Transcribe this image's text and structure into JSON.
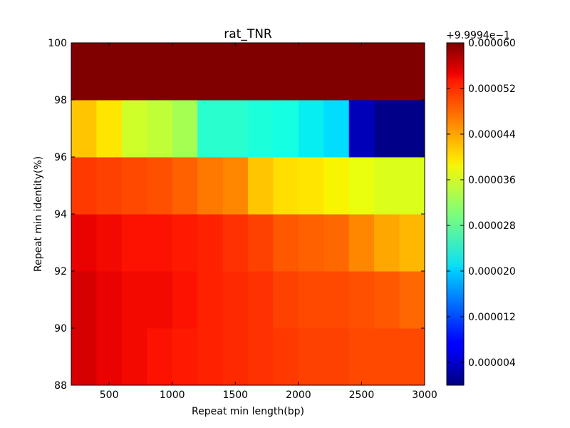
{
  "chart_data": {
    "type": "heatmap",
    "title": "rat_TNR",
    "xlabel": "Repeat min length(bp)",
    "ylabel": "Repeat min identity(%)",
    "x_range": [
      200,
      3000
    ],
    "y_range": [
      88,
      100
    ],
    "x_ticks": [
      500,
      1000,
      1500,
      2000,
      2500,
      3000
    ],
    "y_ticks": [
      88,
      90,
      92,
      94,
      96,
      98,
      100
    ],
    "x_tick_labels": [
      "500",
      "1000",
      "1500",
      "2000",
      "2500",
      "3000"
    ],
    "y_tick_labels": [
      "88",
      "90",
      "92",
      "94",
      "96",
      "98",
      "100"
    ],
    "x_cell_edges": [
      200,
      400,
      600,
      800,
      1000,
      1200,
      1400,
      1600,
      1800,
      2000,
      2200,
      2400,
      2600,
      2800,
      3000
    ],
    "y_cell_edges": [
      88,
      90,
      92,
      94,
      96,
      98,
      100
    ],
    "colorbar": {
      "colormap": "jet",
      "offset_label": "+9.9994e−1",
      "vmin": 0.0,
      "vmax": 6e-05,
      "ticks": [
        4e-06,
        1.2e-05,
        2e-05,
        2.8e-05,
        3.6e-05,
        4.4e-05,
        5.2e-05,
        6e-05
      ],
      "tick_labels": [
        "0.000004",
        "0.000012",
        "0.000020",
        "0.000028",
        "0.000036",
        "0.000044",
        "0.000052",
        "0.000060"
      ]
    },
    "rows": [
      {
        "identity_range": [
          88,
          90
        ],
        "values": [
          5.55e-05,
          5.45e-05,
          5.4e-05,
          5.35e-05,
          5.3e-05,
          5.25e-05,
          5.2e-05,
          5.15e-05,
          5.1e-05,
          5.05e-05,
          5.05e-05,
          5e-05,
          5e-05,
          5e-05
        ]
      },
      {
        "identity_range": [
          90,
          92
        ],
        "values": [
          5.55e-05,
          5.45e-05,
          5.4e-05,
          5.4e-05,
          5.35e-05,
          5.25e-05,
          5.2e-05,
          5.15e-05,
          5.05e-05,
          5e-05,
          5e-05,
          4.95e-05,
          4.9e-05,
          4.8e-05
        ]
      },
      {
        "identity_range": [
          92,
          94
        ],
        "values": [
          5.45e-05,
          5.4e-05,
          5.35e-05,
          5.35e-05,
          5.3e-05,
          5.25e-05,
          5.15e-05,
          5.05e-05,
          4.9e-05,
          4.85e-05,
          4.8e-05,
          4.6e-05,
          4.4e-05,
          4.3e-05
        ]
      },
      {
        "identity_range": [
          94,
          96
        ],
        "values": [
          5.1e-05,
          5.05e-05,
          5e-05,
          4.95e-05,
          4.85e-05,
          4.7e-05,
          4.6e-05,
          4.2e-05,
          4.05e-05,
          4e-05,
          3.9e-05,
          3.8e-05,
          3.7e-05,
          3.7e-05
        ]
      },
      {
        "identity_range": [
          96,
          98
        ],
        "values": [
          4.2e-05,
          4e-05,
          3.6e-05,
          3.5e-05,
          3.3e-05,
          2.4e-05,
          2.4e-05,
          2.3e-05,
          2.25e-05,
          2.15e-05,
          2.05e-05,
          3e-06,
          5e-07,
          5e-07
        ]
      },
      {
        "identity_range": [
          98,
          100
        ],
        "values": [
          6e-05,
          6e-05,
          6e-05,
          6e-05,
          6e-05,
          6e-05,
          6e-05,
          6e-05,
          6e-05,
          6e-05,
          6e-05,
          6e-05,
          6e-05,
          6e-05
        ]
      }
    ],
    "grid": false
  }
}
